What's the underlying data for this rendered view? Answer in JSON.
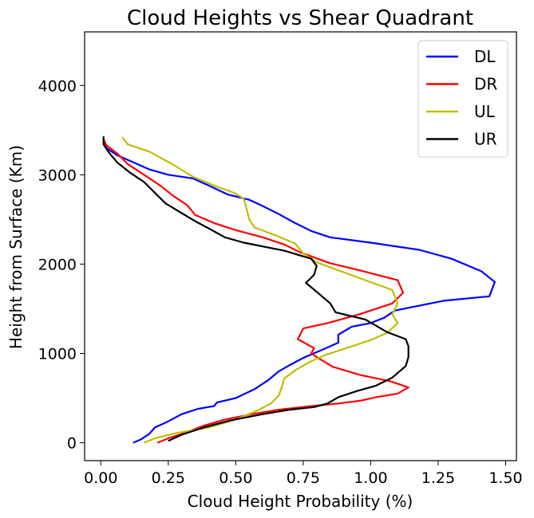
{
  "chart_data": {
    "type": "line",
    "title": "Cloud Heights vs Shear Quadrant",
    "xlabel": "Cloud Height Probability (%)",
    "ylabel": "Height from Surface (Km)",
    "xlim": [
      -0.06,
      1.54
    ],
    "ylim": [
      -200,
      4600
    ],
    "xticks": [
      0.0,
      0.25,
      0.5,
      0.75,
      1.0,
      1.25,
      1.5
    ],
    "xtick_labels": [
      "0.00",
      "0.25",
      "0.50",
      "0.75",
      "1.00",
      "1.25",
      "1.50"
    ],
    "yticks": [
      0,
      1000,
      2000,
      3000,
      4000
    ],
    "ytick_labels": [
      "0",
      "1000",
      "2000",
      "3000",
      "4000"
    ],
    "legend_position": "top-right",
    "series": [
      {
        "name": "DL",
        "color": "#0000ff",
        "points": [
          [
            0.12,
            0
          ],
          [
            0.15,
            40
          ],
          [
            0.18,
            100
          ],
          [
            0.2,
            170
          ],
          [
            0.25,
            240
          ],
          [
            0.3,
            320
          ],
          [
            0.36,
            380
          ],
          [
            0.42,
            410
          ],
          [
            0.43,
            450
          ],
          [
            0.5,
            500
          ],
          [
            0.57,
            600
          ],
          [
            0.62,
            700
          ],
          [
            0.66,
            800
          ],
          [
            0.7,
            870
          ],
          [
            0.75,
            950
          ],
          [
            0.82,
            1040
          ],
          [
            0.88,
            1120
          ],
          [
            0.88,
            1210
          ],
          [
            0.93,
            1300
          ],
          [
            1.0,
            1340
          ],
          [
            1.05,
            1400
          ],
          [
            1.09,
            1480
          ],
          [
            1.27,
            1590
          ],
          [
            1.44,
            1640
          ],
          [
            1.46,
            1800
          ],
          [
            1.41,
            1920
          ],
          [
            1.3,
            2060
          ],
          [
            1.18,
            2160
          ],
          [
            1.0,
            2240
          ],
          [
            0.85,
            2300
          ],
          [
            0.78,
            2370
          ],
          [
            0.72,
            2460
          ],
          [
            0.66,
            2560
          ],
          [
            0.6,
            2650
          ],
          [
            0.55,
            2720
          ],
          [
            0.47,
            2780
          ],
          [
            0.4,
            2880
          ],
          [
            0.34,
            2960
          ],
          [
            0.25,
            3000
          ],
          [
            0.18,
            3060
          ],
          [
            0.12,
            3140
          ],
          [
            0.06,
            3220
          ],
          [
            0.02,
            3300
          ],
          [
            0.01,
            3400
          ]
        ]
      },
      {
        "name": "DR",
        "color": "#ff0000",
        "points": [
          [
            0.21,
            0
          ],
          [
            0.25,
            50
          ],
          [
            0.31,
            110
          ],
          [
            0.38,
            190
          ],
          [
            0.46,
            260
          ],
          [
            0.56,
            320
          ],
          [
            0.66,
            370
          ],
          [
            0.78,
            410
          ],
          [
            0.88,
            440
          ],
          [
            0.96,
            470
          ],
          [
            1.02,
            510
          ],
          [
            1.1,
            550
          ],
          [
            1.14,
            620
          ],
          [
            1.07,
            690
          ],
          [
            0.96,
            760
          ],
          [
            0.86,
            850
          ],
          [
            0.81,
            940
          ],
          [
            0.78,
            1000
          ],
          [
            0.79,
            1060
          ],
          [
            0.73,
            1160
          ],
          [
            0.75,
            1280
          ],
          [
            0.84,
            1340
          ],
          [
            0.96,
            1440
          ],
          [
            1.08,
            1560
          ],
          [
            1.12,
            1680
          ],
          [
            1.1,
            1820
          ],
          [
            0.96,
            1930
          ],
          [
            0.85,
            2010
          ],
          [
            0.74,
            2130
          ],
          [
            0.68,
            2220
          ],
          [
            0.6,
            2300
          ],
          [
            0.5,
            2380
          ],
          [
            0.42,
            2460
          ],
          [
            0.35,
            2550
          ],
          [
            0.32,
            2660
          ],
          [
            0.27,
            2760
          ],
          [
            0.22,
            2880
          ],
          [
            0.16,
            3000
          ],
          [
            0.1,
            3120
          ],
          [
            0.06,
            3240
          ],
          [
            0.02,
            3330
          ],
          [
            0.01,
            3400
          ]
        ]
      },
      {
        "name": "UL",
        "color": "#bfbf00",
        "points": [
          [
            0.16,
            0
          ],
          [
            0.2,
            50
          ],
          [
            0.28,
            110
          ],
          [
            0.4,
            170
          ],
          [
            0.5,
            260
          ],
          [
            0.58,
            360
          ],
          [
            0.63,
            440
          ],
          [
            0.66,
            530
          ],
          [
            0.67,
            620
          ],
          [
            0.68,
            720
          ],
          [
            0.72,
            810
          ],
          [
            0.77,
            900
          ],
          [
            0.83,
            980
          ],
          [
            0.92,
            1070
          ],
          [
            1.0,
            1150
          ],
          [
            1.06,
            1230
          ],
          [
            1.1,
            1340
          ],
          [
            1.08,
            1440
          ],
          [
            1.1,
            1560
          ],
          [
            1.08,
            1710
          ],
          [
            0.98,
            1820
          ],
          [
            0.89,
            1920
          ],
          [
            0.8,
            2020
          ],
          [
            0.75,
            2120
          ],
          [
            0.72,
            2230
          ],
          [
            0.65,
            2320
          ],
          [
            0.57,
            2410
          ],
          [
            0.55,
            2500
          ],
          [
            0.54,
            2620
          ],
          [
            0.53,
            2730
          ],
          [
            0.5,
            2790
          ],
          [
            0.42,
            2880
          ],
          [
            0.34,
            2980
          ],
          [
            0.27,
            3110
          ],
          [
            0.18,
            3260
          ],
          [
            0.1,
            3340
          ],
          [
            0.08,
            3420
          ]
        ]
      },
      {
        "name": "UR",
        "color": "#000000",
        "points": [
          [
            0.25,
            20
          ],
          [
            0.3,
            90
          ],
          [
            0.38,
            170
          ],
          [
            0.48,
            250
          ],
          [
            0.6,
            320
          ],
          [
            0.7,
            370
          ],
          [
            0.79,
            400
          ],
          [
            0.84,
            440
          ],
          [
            0.88,
            510
          ],
          [
            0.95,
            580
          ],
          [
            1.02,
            640
          ],
          [
            1.08,
            730
          ],
          [
            1.13,
            860
          ],
          [
            1.14,
            960
          ],
          [
            1.14,
            1080
          ],
          [
            1.13,
            1160
          ],
          [
            1.06,
            1240
          ],
          [
            0.98,
            1380
          ],
          [
            0.87,
            1460
          ],
          [
            0.85,
            1560
          ],
          [
            0.8,
            1690
          ],
          [
            0.76,
            1790
          ],
          [
            0.79,
            1880
          ],
          [
            0.8,
            1980
          ],
          [
            0.78,
            2060
          ],
          [
            0.68,
            2150
          ],
          [
            0.53,
            2240
          ],
          [
            0.46,
            2300
          ],
          [
            0.4,
            2400
          ],
          [
            0.35,
            2480
          ],
          [
            0.3,
            2570
          ],
          [
            0.24,
            2680
          ],
          [
            0.2,
            2800
          ],
          [
            0.16,
            2920
          ],
          [
            0.11,
            3020
          ],
          [
            0.06,
            3140
          ],
          [
            0.03,
            3250
          ],
          [
            0.01,
            3340
          ],
          [
            0.01,
            3430
          ]
        ]
      }
    ]
  }
}
